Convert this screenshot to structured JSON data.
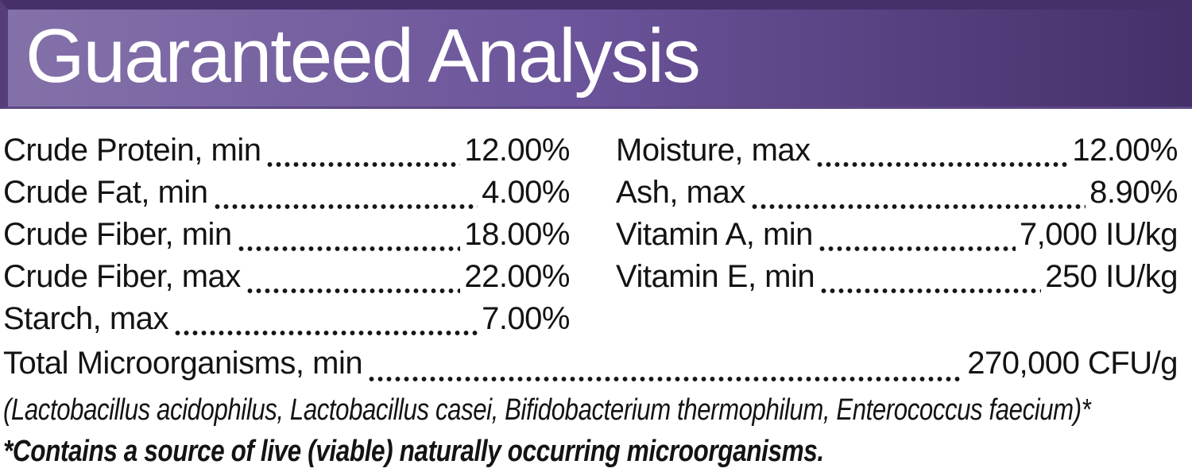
{
  "header": {
    "title": "Guaranteed Analysis",
    "colors": {
      "gradient_left": "#8471a9",
      "gradient_right": "#443069",
      "frame_top": "#46306a",
      "frame_left": "#543d79",
      "title_text": "#ffffff"
    }
  },
  "analysis": {
    "left_column": [
      {
        "label": "Crude Protein, min",
        "value": "12.00%"
      },
      {
        "label": "Crude Fat, min",
        "value": "4.00%"
      },
      {
        "label": "Crude Fiber, min",
        "value": "18.00%"
      },
      {
        "label": "Crude Fiber, max",
        "value": "22.00%"
      },
      {
        "label": "Starch, max",
        "value": "7.00%"
      }
    ],
    "right_column": [
      {
        "label": "Moisture, max",
        "value": "12.00%"
      },
      {
        "label": "Ash, max",
        "value": "8.90%"
      },
      {
        "label": "Vitamin A, min",
        "value": "7,000 IU/kg"
      },
      {
        "label": "Vitamin E, min",
        "value": "250 IU/kg"
      }
    ],
    "total_row": {
      "label": "Total Microorganisms, min",
      "value": "270,000 CFU/g"
    },
    "species_note": "(Lactobacillus acidophilus, Lactobacillus casei, Bifidobacterium thermophilum, Enterococcus faecium)*",
    "footnote": "*Contains a source of live (viable) naturally occurring microorganisms."
  }
}
